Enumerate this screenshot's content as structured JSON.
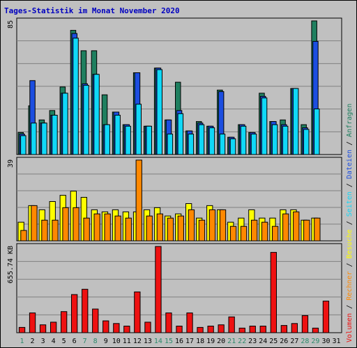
{
  "colors": {
    "page_background": "#ffffff",
    "frame_background": "#c0c0c0",
    "plot_background": "#c0c0c0",
    "grid": "#808080",
    "title": "#0000c0",
    "weekday_label": "#000000",
    "weekend_label": "#2b8a6b",
    "label_sep": "#000000"
  },
  "chart_data": {
    "type": "bar",
    "title": "Tages-Statistik im Monat November 2020",
    "days": [
      "1",
      "2",
      "3",
      "4",
      "5",
      "6",
      "7",
      "8",
      "9",
      "10",
      "11",
      "12",
      "13",
      "14",
      "15",
      "16",
      "17",
      "18",
      "19",
      "20",
      "21",
      "22",
      "23",
      "24",
      "25",
      "26",
      "27",
      "28",
      "29",
      "30",
      "31"
    ],
    "weekend_days": [
      "1",
      "7",
      "8",
      "14",
      "15",
      "21",
      "22",
      "28",
      "29"
    ],
    "legend_separator": "/",
    "panels": [
      {
        "id": "top",
        "max_label": "85",
        "ylim": [
          0,
          85
        ],
        "series": [
          {
            "name": "Anfragen",
            "color": "#1f7f5f",
            "values": [
              14,
              31,
              22,
              28,
              43,
              79,
              66,
              66,
              38,
              27,
              19,
              52,
              18,
              55,
              22,
              46,
              15,
              21,
              18,
              41,
              11,
              19,
              14,
              39,
              21,
              22,
              42,
              19,
              85,
              0,
              0
            ]
          },
          {
            "name": "Dateien",
            "color": "#1c4ee0",
            "values": [
              13,
              47,
              20,
              25,
              39,
              77,
              45,
              51,
              19,
              27,
              19,
              52,
              18,
              55,
              22,
              28,
              15,
              20,
              18,
              40,
              11,
              19,
              14,
              37,
              21,
              19,
              42,
              17,
              72,
              0,
              0
            ]
          },
          {
            "name": "Seiten",
            "color": "#10d8f8",
            "values": [
              12,
              20,
              20,
              25,
              39,
              74,
              44,
              51,
              19,
              25,
              18,
              32,
              18,
              54,
              13,
              26,
              13,
              19,
              17,
              13,
              10,
              18,
              13,
              36,
              19,
              18,
              42,
              16,
              29,
              0,
              0
            ]
          }
        ]
      },
      {
        "id": "middle",
        "max_label": "39",
        "ylim": [
          0,
          39
        ],
        "series": [
          {
            "name": "Besuche",
            "color": "#ffff00",
            "values": [
              9,
              17,
              15,
              19,
              22,
              24,
              21,
              15,
              14,
              15,
              14,
              14,
              15,
              16,
              12,
              13,
              18,
              11,
              17,
              15,
              9,
              11,
              15,
              11,
              11,
              15,
              15,
              10,
              11,
              0,
              0
            ]
          },
          {
            "name": "Rechner",
            "color": "#ff8800",
            "values": [
              5,
              17,
              10,
              10,
              16,
              16,
              11,
              13,
              13,
              12,
              11,
              39,
              12,
              13,
              11,
              12,
              15,
              10,
              15,
              15,
              7,
              7,
              10,
              9,
              7,
              13,
              14,
              10,
              11,
              0,
              0
            ]
          }
        ]
      },
      {
        "id": "bottom",
        "max_label": "655.74 KB",
        "ylim": [
          0,
          655.74
        ],
        "series": [
          {
            "name": "Volumen",
            "color": "#ee1111",
            "values": [
              40,
              150,
              60,
              80,
              160,
              290,
              330,
              180,
              90,
              70,
              50,
              310,
              80,
              655,
              150,
              50,
              150,
              40,
              50,
              60,
              120,
              35,
              50,
              50,
              610,
              55,
              70,
              130,
              35,
              240,
              0
            ]
          }
        ]
      }
    ],
    "legend_order": [
      "Volumen",
      "Rechner",
      "Besuche",
      "Seiten",
      "Dateien",
      "Anfragen"
    ],
    "right_top_legend": [
      "Anfragen",
      "Dateien",
      "Seiten",
      "Besuche",
      "Rechner",
      "Volumen"
    ]
  }
}
